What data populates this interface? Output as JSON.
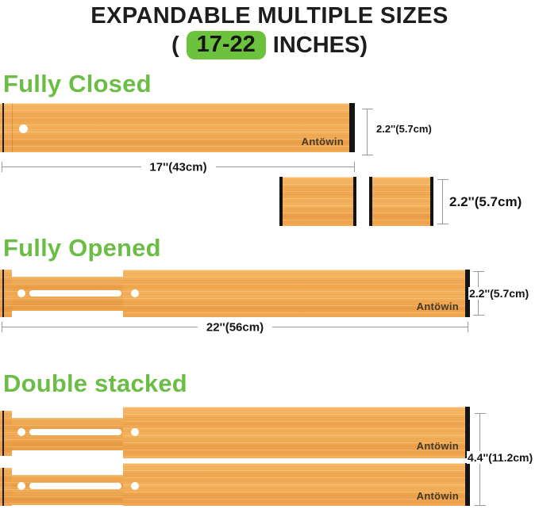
{
  "title": {
    "line1": "EXPANDABLE MULTIPLE SIZES",
    "paren_open": "(",
    "range_highlight": "17-22",
    "suffix": "INCHES)"
  },
  "brand_label": "Antöwin",
  "sections": {
    "fully_closed": {
      "heading": "Fully Closed",
      "height_label": "2.2''(5.7cm)",
      "width_label": "17''(43cm)"
    },
    "small_pieces": {
      "height_label": "2.2''(5.7cm)"
    },
    "fully_opened": {
      "heading": "Fully Opened",
      "height_label": "2.2''(5.7cm)",
      "width_label": "22''(56cm)"
    },
    "double_stacked": {
      "heading": "Double stacked",
      "height_label": "4.4''(11.2cm)"
    }
  },
  "colors": {
    "accent_green": "#6cbd45",
    "highlight_green": "#6cc23d",
    "bamboo_base": "#f2ab54",
    "edge_black": "#141414",
    "dimension_line_gray": "#9a9a9a",
    "text_black": "#1c1c1c"
  }
}
